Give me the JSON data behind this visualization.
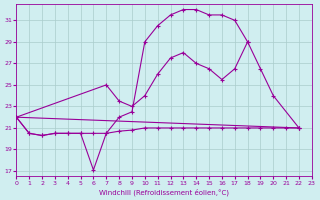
{
  "xlabel": "Windchill (Refroidissement éolien,°C)",
  "background_color": "#d0eef0",
  "grid_color": "#aacccc",
  "line_color": "#990099",
  "xlim": [
    0,
    23
  ],
  "ylim": [
    16.5,
    32.5
  ],
  "xticks": [
    0,
    1,
    2,
    3,
    4,
    5,
    6,
    7,
    8,
    9,
    10,
    11,
    12,
    13,
    14,
    15,
    16,
    17,
    18,
    19,
    20,
    21,
    22,
    23
  ],
  "yticks": [
    17,
    19,
    21,
    23,
    25,
    27,
    29,
    31
  ],
  "series": [
    {
      "x": [
        0,
        1,
        2,
        3,
        4,
        5,
        6,
        7,
        8,
        9,
        10,
        11,
        12,
        13,
        14,
        15,
        16,
        17,
        18
      ],
      "y": [
        22.0,
        20.5,
        20.3,
        20.5,
        20.5,
        20.5,
        17.1,
        20.5,
        22.0,
        22.5,
        29.0,
        30.5,
        31.5,
        32.0,
        32.0,
        31.5,
        31.5,
        31.0,
        29.0
      ]
    },
    {
      "x": [
        0,
        7,
        8,
        9,
        10,
        11,
        12,
        13,
        14,
        15,
        16,
        17,
        18,
        19,
        20,
        22
      ],
      "y": [
        22.0,
        25.0,
        23.5,
        23.0,
        24.0,
        26.0,
        27.5,
        28.0,
        27.0,
        26.5,
        25.5,
        26.5,
        29.0,
        26.5,
        24.0,
        21.0
      ]
    },
    {
      "x": [
        0,
        1,
        2,
        3,
        4,
        5,
        6,
        7,
        8,
        9,
        10,
        11,
        12,
        13,
        14,
        15,
        16,
        17,
        18,
        19,
        20,
        21,
        22
      ],
      "y": [
        22.0,
        20.5,
        20.3,
        20.5,
        20.5,
        20.5,
        20.5,
        20.5,
        20.7,
        20.8,
        21.0,
        21.0,
        21.0,
        21.0,
        21.0,
        21.0,
        21.0,
        21.0,
        21.0,
        21.0,
        21.0,
        21.0,
        21.0
      ]
    },
    {
      "x": [
        0,
        22
      ],
      "y": [
        22.0,
        21.0
      ]
    }
  ]
}
